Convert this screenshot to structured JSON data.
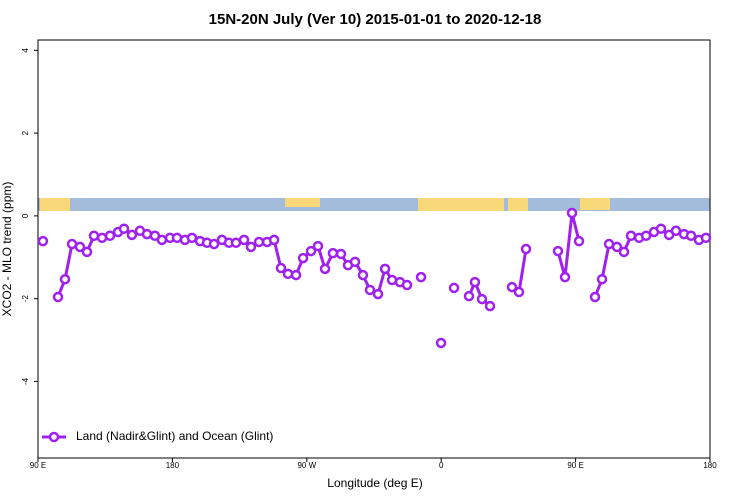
{
  "chart_data": {
    "type": "line",
    "title": "15N-20N July (Ver 10)   2015-01-01 to 2020-12-18",
    "x_label": "Longitude (deg E)",
    "y_label": "XCO2 - MLO trend (ppm)",
    "xlim": [
      90,
      540
    ],
    "xticks": [
      {
        "value": 90,
        "label": "90 E"
      },
      180,
      {
        "value": 270,
        "label": "90 W"
      },
      {
        "value": 360,
        "label": "0"
      },
      {
        "value": 450,
        "label": "90 E"
      },
      {
        "value": 540,
        "label": "180"
      }
    ],
    "ylim": [
      -5.85,
      4.25
    ],
    "yticks": [
      -4,
      -2,
      0,
      2,
      4
    ],
    "legend": "bottom-left",
    "x": [
      93.3,
      null,
      103.4,
      108.1,
      112.8,
      118.1,
      122.8,
      127.5,
      132.9,
      138.2,
      143.6,
      147.6,
      152.9,
      158.3,
      163.0,
      168.3,
      173.0,
      178.4,
      183.1,
      188.4,
      193.1,
      198.5,
      203.2,
      207.9,
      213.2,
      217.9,
      222.6,
      228.0,
      232.6,
      238.0,
      243.4,
      248.1,
      252.7,
      257.4,
      262.8,
      267.5,
      272.8,
      277.5,
      282.2,
      287.5,
      292.9,
      297.6,
      302.3,
      307.6,
      312.3,
      317.7,
      322.4,
      327.1,
      332.4,
      337.1,
      null,
      346.5,
      null,
      359.9,
      null,
      368.6,
      null,
      378.6,
      382.6,
      387.3,
      392.7,
      null,
      407.4,
      412.1,
      416.8,
      null,
      438.2,
      442.9,
      447.6,
      452.3,
      null,
      463.0,
      467.7,
      472.4,
      477.7,
      482.4,
      487.1,
      492.5,
      497.2,
      502.5,
      507.2,
      512.6,
      517.2,
      522.6,
      527.3,
      532.6,
      537.3
    ],
    "series": [
      {
        "name": "Land (Nadir&Glint) and Ocean (Glint)",
        "color": "#a020f0",
        "values": [
          -0.61,
          null,
          -1.96,
          -1.53,
          -0.68,
          -0.75,
          -0.87,
          -0.48,
          -0.53,
          -0.48,
          -0.39,
          -0.31,
          -0.46,
          -0.36,
          -0.44,
          -0.48,
          -0.58,
          -0.53,
          -0.53,
          -0.58,
          -0.53,
          -0.61,
          -0.65,
          -0.68,
          -0.58,
          -0.65,
          -0.65,
          -0.58,
          -0.75,
          -0.63,
          -0.63,
          -0.58,
          -1.26,
          -1.4,
          -1.43,
          -1.02,
          -0.85,
          -0.73,
          -1.28,
          -0.9,
          -0.92,
          -1.19,
          -1.11,
          -1.43,
          -1.79,
          -1.89,
          -1.28,
          -1.55,
          -1.6,
          -1.67,
          null,
          -1.48,
          null,
          -3.07,
          null,
          -1.74,
          null,
          -1.94,
          -1.6,
          -2.01,
          -2.18,
          null,
          -1.72,
          -1.84,
          -0.8,
          null,
          -0.85,
          -1.48,
          0.07,
          -0.61,
          null,
          -1.96,
          -1.53,
          -0.68,
          -0.75,
          -0.87,
          -0.48,
          -0.53,
          -0.48,
          -0.39,
          -0.31,
          -0.46,
          -0.36,
          -0.44,
          -0.48,
          -0.58,
          -0.53
        ]
      }
    ]
  }
}
